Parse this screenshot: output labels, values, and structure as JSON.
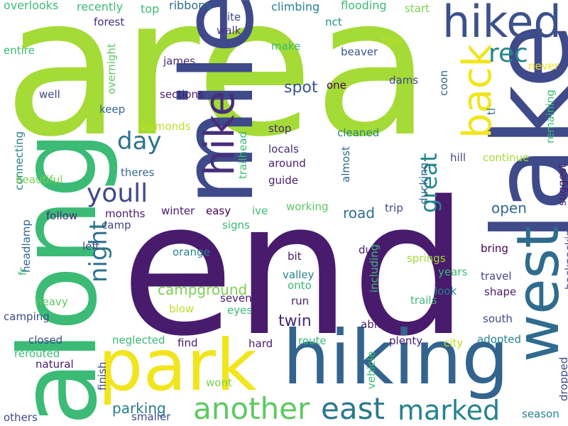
{
  "words": [
    {
      "text": "area",
      "color": "#a5db36"
    },
    {
      "text": "end",
      "color": "#481b6d"
    },
    {
      "text": "along",
      "color": "#3bbb75"
    },
    {
      "text": "lake",
      "color": "#3e4a89"
    },
    {
      "text": "mile",
      "color": "#3e4a89"
    },
    {
      "text": "hiking",
      "color": "#32648e"
    },
    {
      "text": "park",
      "color": "#f1e51d"
    },
    {
      "text": "west",
      "color": "#2f6c8e"
    },
    {
      "text": "hiked",
      "color": "#3b528b"
    },
    {
      "text": "hike",
      "color": "#472d7b"
    },
    {
      "text": "back",
      "color": "#f1e51d"
    },
    {
      "text": "another",
      "color": "#5ec962"
    },
    {
      "text": "east",
      "color": "#2a788e"
    },
    {
      "text": "marked",
      "color": "#26828e"
    },
    {
      "text": "rec",
      "color": "#25858e"
    },
    {
      "text": "youll",
      "color": "#3f4889"
    },
    {
      "text": "day",
      "color": "#2c728e"
    },
    {
      "text": "night",
      "color": "#2c728e"
    },
    {
      "text": "great",
      "color": "#23898e"
    },
    {
      "text": "campground",
      "color": "#7ad151"
    },
    {
      "text": "twin",
      "color": "#482878"
    },
    {
      "text": "spot",
      "color": "#3b528b"
    },
    {
      "text": "open",
      "color": "#31688e"
    },
    {
      "text": "road",
      "color": "#2d708e"
    },
    {
      "text": "parking",
      "color": "#287c8e"
    },
    {
      "text": "overlooks",
      "color": "#3bbb75"
    },
    {
      "text": "recently",
      "color": "#3bbb75"
    },
    {
      "text": "top",
      "color": "#3bbb75"
    },
    {
      "text": "ribbons",
      "color": "#2e6e8e"
    },
    {
      "text": "climbing",
      "color": "#26828e"
    },
    {
      "text": "flooding",
      "color": "#3bbb75"
    },
    {
      "text": "start",
      "color": "#7ad151"
    },
    {
      "text": "forest",
      "color": "#472d7b"
    },
    {
      "text": "site",
      "color": "#3e4a89"
    },
    {
      "text": "walk",
      "color": "#463480"
    },
    {
      "text": "nct",
      "color": "#20928c"
    },
    {
      "text": "two",
      "color": "#bddf26"
    },
    {
      "text": "beaver",
      "color": "#39558c"
    },
    {
      "text": "entire",
      "color": "#3bbb75"
    },
    {
      "text": "make",
      "color": "#3bbb75"
    },
    {
      "text": "james",
      "color": "#472d7b"
    },
    {
      "text": "overnight",
      "color": "#5ec962"
    },
    {
      "text": "never",
      "color": "#f1e51d"
    },
    {
      "text": "one",
      "color": "#440154"
    },
    {
      "text": "dams",
      "color": "#3e4a89"
    },
    {
      "text": "coon",
      "color": "#31688e"
    },
    {
      "text": "tl",
      "color": "#31688e"
    },
    {
      "text": "remaining",
      "color": "#3bbb75"
    },
    {
      "text": "well",
      "color": "#3e4a89"
    },
    {
      "text": "sections",
      "color": "#481b6d"
    },
    {
      "text": "keep",
      "color": "#31688e"
    },
    {
      "text": "diamonds",
      "color": "#bddf26"
    },
    {
      "text": "stop",
      "color": "#482878"
    },
    {
      "text": "cleaned",
      "color": "#26828e"
    },
    {
      "text": "trailhead",
      "color": "#3bbb75"
    },
    {
      "text": "connecting",
      "color": "#26828e"
    },
    {
      "text": "locals",
      "color": "#482878"
    },
    {
      "text": "around",
      "color": "#481b6d"
    },
    {
      "text": "guide",
      "color": "#481b6d"
    },
    {
      "text": "almost",
      "color": "#31688e"
    },
    {
      "text": "ducking",
      "color": "#31688e"
    },
    {
      "text": "hill",
      "color": "#3e4a89"
    },
    {
      "text": "continue",
      "color": "#a5db36"
    },
    {
      "text": "suggest",
      "color": "#481b6d"
    },
    {
      "text": "theres",
      "color": "#31688e"
    },
    {
      "text": "beautiful",
      "color": "#7ad151"
    },
    {
      "text": "follow",
      "color": "#472d7b"
    },
    {
      "text": "months",
      "color": "#481b6d"
    },
    {
      "text": "winter",
      "color": "#481b6d"
    },
    {
      "text": "easy",
      "color": "#440154"
    },
    {
      "text": "ive",
      "color": "#3bbb75"
    },
    {
      "text": "working",
      "color": "#5ec962"
    },
    {
      "text": "trip",
      "color": "#3e4a89"
    },
    {
      "text": "camp",
      "color": "#3e4a89"
    },
    {
      "text": "signs",
      "color": "#3bbb75"
    },
    {
      "text": "headlamp",
      "color": "#31688e"
    },
    {
      "text": "left",
      "color": "#3e4a89"
    },
    {
      "text": "orange",
      "color": "#26828e"
    },
    {
      "text": "due",
      "color": "#481b6d"
    },
    {
      "text": "including",
      "color": "#3bbb75"
    },
    {
      "text": "bring",
      "color": "#440154"
    },
    {
      "text": "backpacking",
      "color": "#3e4a89"
    },
    {
      "text": "springs",
      "color": "#a5db36"
    },
    {
      "text": "bit",
      "color": "#481b6d"
    },
    {
      "text": "years",
      "color": "#3bbb75"
    },
    {
      "text": "valley",
      "color": "#26828e"
    },
    {
      "text": "travel",
      "color": "#3e4a89"
    },
    {
      "text": "onto",
      "color": "#3bbb75"
    },
    {
      "text": "look",
      "color": "#26828e"
    },
    {
      "text": "shape",
      "color": "#481b6d"
    },
    {
      "text": "fr",
      "color": "#3bbb75"
    },
    {
      "text": "seven",
      "color": "#481b6d"
    },
    {
      "text": "trails",
      "color": "#3bbb75"
    },
    {
      "text": "heavy",
      "color": "#5ec962"
    },
    {
      "text": "blow",
      "color": "#bddf26"
    },
    {
      "text": "run",
      "color": "#481b6d"
    },
    {
      "text": "eyes",
      "color": "#3bbb75"
    },
    {
      "text": "camping",
      "color": "#3e4a89"
    },
    {
      "text": "south",
      "color": "#3e4a89"
    },
    {
      "text": "able",
      "color": "#481b6d"
    },
    {
      "text": "closed",
      "color": "#3e4a89"
    },
    {
      "text": "neglected",
      "color": "#3bbb75"
    },
    {
      "text": "find",
      "color": "#481b6d"
    },
    {
      "text": "hard",
      "color": "#481b6d"
    },
    {
      "text": "route",
      "color": "#3bbb75"
    },
    {
      "text": "plenty",
      "color": "#481b6d"
    },
    {
      "text": "city",
      "color": "#bddf26"
    },
    {
      "text": "adopted",
      "color": "#26828e"
    },
    {
      "text": "rerouted",
      "color": "#3bbb75"
    },
    {
      "text": "natural",
      "color": "#481b6d"
    },
    {
      "text": "finish",
      "color": "#3e4a89"
    },
    {
      "text": "vehicle",
      "color": "#3bbb75"
    },
    {
      "text": "dropped",
      "color": "#3e4a89"
    },
    {
      "text": "wont",
      "color": "#7ad151"
    },
    {
      "text": "smaller",
      "color": "#3e4a89"
    },
    {
      "text": "others",
      "color": "#3e4a89"
    },
    {
      "text": "season",
      "color": "#26828e"
    }
  ]
}
